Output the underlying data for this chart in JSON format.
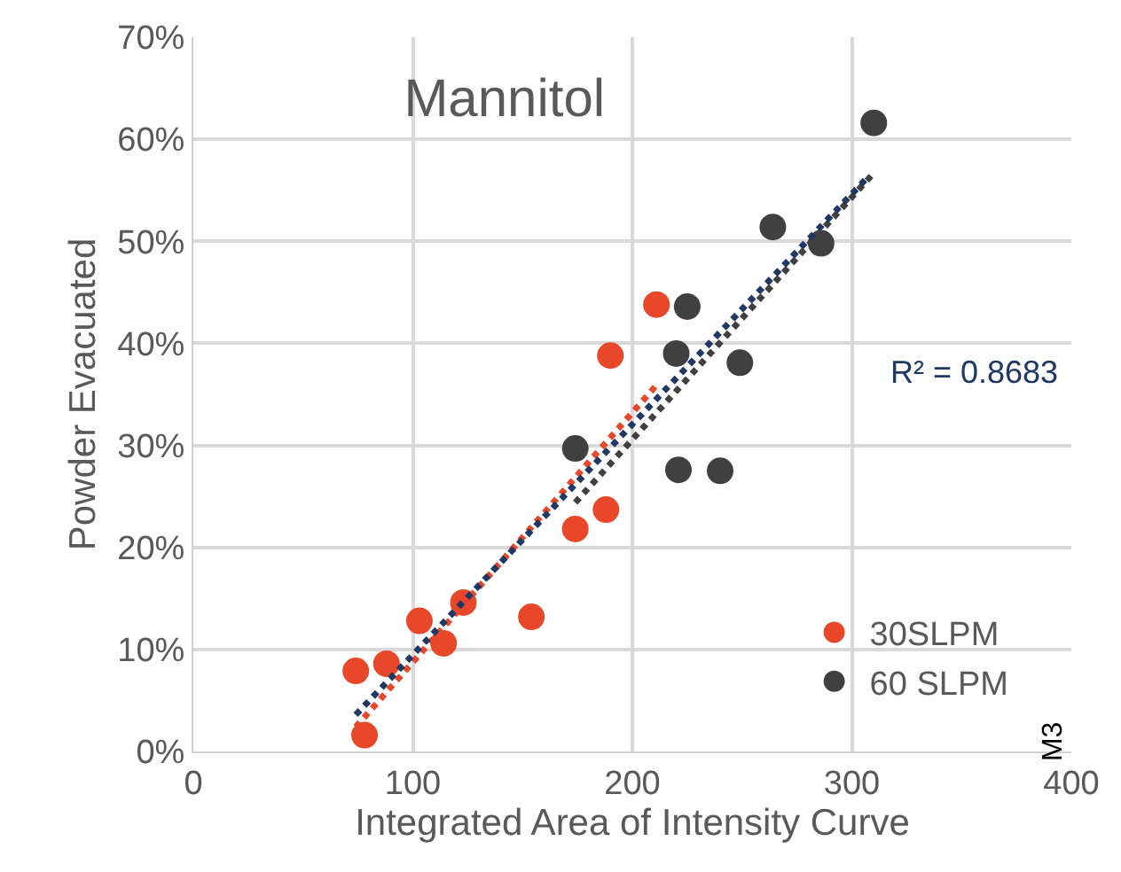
{
  "chart_data": {
    "type": "scatter",
    "title": "Mannitol",
    "xlabel": "Integrated Area of Intensity Curve",
    "ylabel": "Powder Evacuated",
    "xlim": [
      0,
      400
    ],
    "xticks": [
      0,
      100,
      200,
      300,
      400
    ],
    "ylim": [
      0,
      0.7
    ],
    "yticks": [
      {
        "value": 0,
        "label": "0%"
      },
      {
        "value": 0.1,
        "label": "10%"
      },
      {
        "value": 0.2,
        "label": "20%"
      },
      {
        "value": 0.3,
        "label": "30%"
      },
      {
        "value": 0.4,
        "label": "40%"
      },
      {
        "value": 0.5,
        "label": "50%"
      },
      {
        "value": 0.6,
        "label": "60%"
      },
      {
        "value": 0.7,
        "label": "70%"
      }
    ],
    "grid": true,
    "legend": "bottom right",
    "series": [
      {
        "name": "30SLPM",
        "color": "#e8472a",
        "marker": "circle",
        "x": [
          74,
          78,
          88,
          103,
          114,
          123,
          154,
          174,
          188,
          190,
          211
        ],
        "values": [
          0.079,
          0.016,
          0.086,
          0.128,
          0.106,
          0.146,
          0.132,
          0.218,
          0.237,
          0.388,
          0.438
        ]
      },
      {
        "name": "60 SLPM",
        "color": "#404040",
        "marker": "circle",
        "x": [
          310,
          264,
          286,
          225,
          220,
          249,
          174,
          221,
          240
        ],
        "values": [
          0.616,
          0.514,
          0.498,
          0.436,
          0.39,
          0.381,
          0.297,
          0.276,
          0.275
        ]
      },
      {
        "type": "line",
        "color": "#e8472a",
        "line_style": "dotted",
        "x": [
          74,
          211
        ],
        "values": [
          0.024,
          0.359
        ]
      },
      {
        "type": "line",
        "color": "#404040",
        "line_style": "dotted",
        "x": [
          174,
          310
        ],
        "values": [
          0.244,
          0.567
        ]
      },
      {
        "type": "line",
        "color": "#1f3864",
        "line_style": "dotted",
        "x": [
          74,
          306
        ],
        "values": [
          0.036,
          0.56
        ]
      }
    ],
    "annotations": [
      "R² = 0.8683",
      "M3"
    ]
  }
}
